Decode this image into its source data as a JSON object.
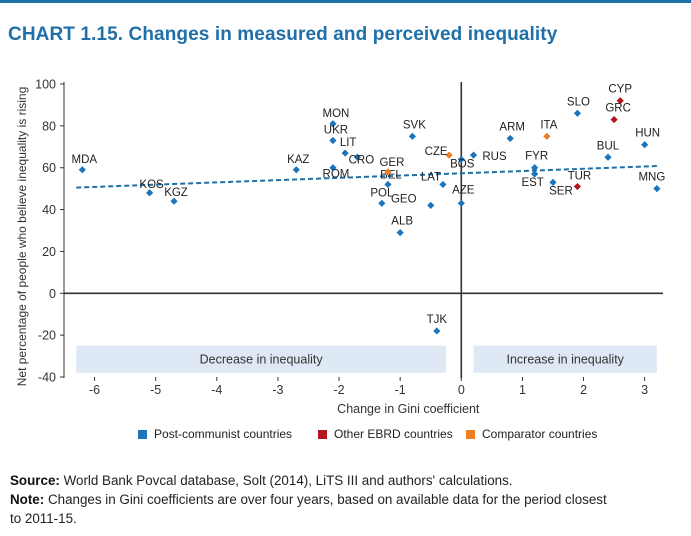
{
  "title": "CHART 1.15. Changes in measured and perceived inequality",
  "colors": {
    "accent": "#1f6fa8",
    "post_communist": "#1c75bc",
    "other_ebrd": "#b2151b",
    "comparator": "#f07f24",
    "band": "#dfe9f5"
  },
  "chart_data": {
    "type": "scatter",
    "title": "CHART 1.15. Changes in measured and perceived inequality",
    "xlabel": "Change in Gini coefficient",
    "ylabel": "Net percentage of people who believe inequality is rising",
    "xlim": [
      -6.5,
      3.3
    ],
    "ylim": [
      -40,
      100
    ],
    "xticks": [
      -6,
      -5,
      -4,
      -3,
      -2,
      -1,
      0,
      1,
      2,
      3
    ],
    "yticks": [
      100,
      80,
      60,
      40,
      20,
      0,
      -20,
      -40
    ],
    "x_tick_labels": [
      "-6",
      "-5",
      "-4",
      "-3",
      "-2",
      "-1",
      "0",
      "1",
      "2",
      "3"
    ],
    "y_tick_labels": [
      "100",
      "80",
      "60",
      "40",
      "20",
      "0",
      "-20",
      "-40"
    ],
    "grid": false,
    "legend_position": "bottom",
    "bands": [
      {
        "label": "Decrease in inequality",
        "x_from": -6.3,
        "x_to": -0.25
      },
      {
        "label": "Increase in inequality",
        "x_from": 0.2,
        "x_to": 3.2
      }
    ],
    "trendline": {
      "x": [
        -6.3,
        3.2
      ],
      "y": [
        50.5,
        60.8
      ]
    },
    "series": [
      {
        "name": "Post-communist countries",
        "color": "#1c75bc",
        "points": [
          {
            "label": "MDA",
            "x": -6.2,
            "y": 59
          },
          {
            "label": "KOS",
            "x": -5.1,
            "y": 48
          },
          {
            "label": "KGZ",
            "x": -4.7,
            "y": 44
          },
          {
            "label": "KAZ",
            "x": -2.7,
            "y": 59
          },
          {
            "label": "MON",
            "x": -2.1,
            "y": 81
          },
          {
            "label": "UKR",
            "x": -2.1,
            "y": 73
          },
          {
            "label": "LIT",
            "x": -1.9,
            "y": 67
          },
          {
            "label": "CRO",
            "x": -1.7,
            "y": 65
          },
          {
            "label": "ROM",
            "x": -2.1,
            "y": 60
          },
          {
            "label": "BEL",
            "x": -1.2,
            "y": 52
          },
          {
            "label": "POL",
            "x": -1.3,
            "y": 43
          },
          {
            "label": "ALB",
            "x": -1.0,
            "y": 29
          },
          {
            "label": "SVK",
            "x": -0.8,
            "y": 75
          },
          {
            "label": "GEO",
            "x": -0.5,
            "y": 42
          },
          {
            "label": "LAT",
            "x": -0.3,
            "y": 52
          },
          {
            "label": "BOS",
            "x": 0.0,
            "y": 64
          },
          {
            "label": "AZE",
            "x": 0.0,
            "y": 43
          },
          {
            "label": "RUS",
            "x": 0.2,
            "y": 66
          },
          {
            "label": "TJK",
            "x": -0.4,
            "y": -18
          },
          {
            "label": "ARM",
            "x": 0.8,
            "y": 74
          },
          {
            "label": "FYR",
            "x": 1.2,
            "y": 60
          },
          {
            "label": "EST",
            "x": 1.2,
            "y": 57
          },
          {
            "label": "SER",
            "x": 1.5,
            "y": 53
          },
          {
            "label": "SLO",
            "x": 1.9,
            "y": 86
          },
          {
            "label": "BUL",
            "x": 2.4,
            "y": 65
          },
          {
            "label": "HUN",
            "x": 3.0,
            "y": 71
          },
          {
            "label": "MNG",
            "x": 3.2,
            "y": 50
          }
        ]
      },
      {
        "name": "Other EBRD countries",
        "color": "#b2151b",
        "points": [
          {
            "label": "CYP",
            "x": 2.6,
            "y": 92
          },
          {
            "label": "GRC",
            "x": 2.5,
            "y": 83
          },
          {
            "label": "TUR",
            "x": 1.9,
            "y": 51
          }
        ]
      },
      {
        "name": "Comparator countries",
        "color": "#f07f24",
        "points": [
          {
            "label": "ITA",
            "x": 1.4,
            "y": 75
          },
          {
            "label": "CZE",
            "x": -0.2,
            "y": 66
          },
          {
            "label": "GER",
            "x": -1.2,
            "y": 58
          }
        ]
      }
    ]
  },
  "legend": [
    {
      "label": "Post-communist countries",
      "color": "#1c75bc"
    },
    {
      "label": "Other EBRD countries",
      "color": "#b2151b"
    },
    {
      "label": "Comparator countries",
      "color": "#f07f24"
    }
  ],
  "source": {
    "label": "Source:",
    "text": "World Bank Povcal database, Solt (2014), LiTS III and authors' calculations."
  },
  "note": {
    "label": "Note:",
    "text_line1": "Changes in Gini coefficients are over four years, based on available data for the period closest",
    "text_line2": "to 2011-15."
  }
}
